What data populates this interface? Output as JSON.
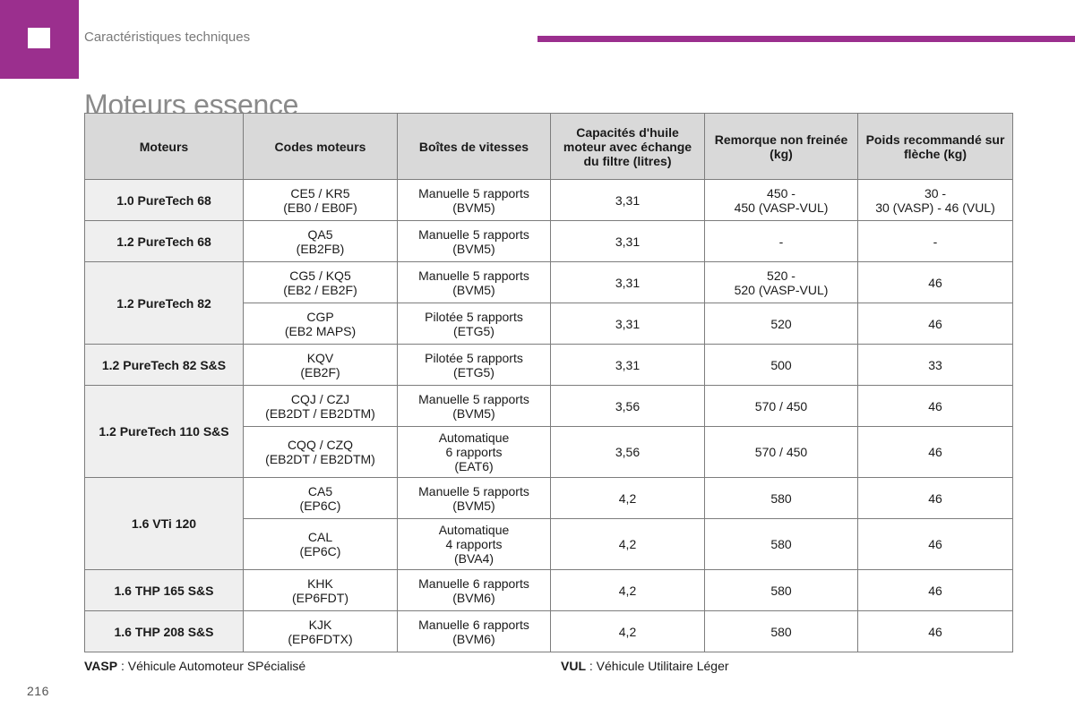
{
  "header": {
    "section_label": "Caractéristiques techniques",
    "title": "Moteurs essence"
  },
  "table": {
    "columns": [
      "Moteurs",
      "Codes moteurs",
      "Boîtes de vitesses",
      "Capacités d'huile moteur avec échange du filtre (litres)",
      "Remorque non freinée (kg)",
      "Poids recommandé sur flèche (kg)"
    ],
    "groups": [
      {
        "engine": "1.0 PureTech 68",
        "rows": [
          {
            "code": [
              "CE5 / KR5",
              "(EB0 / EB0F)"
            ],
            "gearbox": [
              "Manuelle 5 rapports",
              "(BVM5)"
            ],
            "oil": "3,31",
            "trailer": [
              "450 -",
              "450 (VASP-VUL)"
            ],
            "nose": [
              "30 -",
              "30 (VASP) - 46 (VUL)"
            ]
          }
        ]
      },
      {
        "engine": "1.2 PureTech 68",
        "rows": [
          {
            "code": [
              "QA5",
              "(EB2FB)"
            ],
            "gearbox": [
              "Manuelle 5 rapports",
              "(BVM5)"
            ],
            "oil": "3,31",
            "trailer": [
              "-"
            ],
            "nose": [
              "-"
            ]
          }
        ]
      },
      {
        "engine": "1.2 PureTech 82",
        "rows": [
          {
            "code": [
              "CG5 / KQ5",
              "(EB2 / EB2F)"
            ],
            "gearbox": [
              "Manuelle 5 rapports",
              "(BVM5)"
            ],
            "oil": "3,31",
            "trailer": [
              "520 -",
              "520 (VASP-VUL)"
            ],
            "nose": [
              "46"
            ]
          },
          {
            "code": [
              "CGP",
              "(EB2 MAPS)"
            ],
            "gearbox": [
              "Pilotée 5 rapports",
              "(ETG5)"
            ],
            "oil": "3,31",
            "trailer": [
              "520"
            ],
            "nose": [
              "46"
            ]
          }
        ]
      },
      {
        "engine": "1.2 PureTech 82 S&S",
        "rows": [
          {
            "code": [
              "KQV",
              "(EB2F)"
            ],
            "gearbox": [
              "Pilotée 5 rapports",
              "(ETG5)"
            ],
            "oil": "3,31",
            "trailer": [
              "500"
            ],
            "nose": [
              "33"
            ]
          }
        ]
      },
      {
        "engine": "1.2 PureTech 110 S&S",
        "rows": [
          {
            "code": [
              "CQJ / CZJ",
              "(EB2DT / EB2DTM)"
            ],
            "gearbox": [
              "Manuelle 5 rapports",
              "(BVM5)"
            ],
            "oil": "3,56",
            "trailer": [
              "570 / 450"
            ],
            "nose": [
              "46"
            ]
          },
          {
            "code": [
              "CQQ / CZQ",
              "(EB2DT / EB2DTM)"
            ],
            "gearbox": [
              "Automatique",
              "6 rapports",
              "(EAT6)"
            ],
            "oil": "3,56",
            "trailer": [
              "570 / 450"
            ],
            "nose": [
              "46"
            ]
          }
        ]
      },
      {
        "engine": "1.6 VTi 120",
        "rows": [
          {
            "code": [
              "CA5",
              "(EP6C)"
            ],
            "gearbox": [
              "Manuelle 5 rapports",
              "(BVM5)"
            ],
            "oil": "4,2",
            "trailer": [
              "580"
            ],
            "nose": [
              "46"
            ]
          },
          {
            "code": [
              "CAL",
              "(EP6C)"
            ],
            "gearbox": [
              "Automatique",
              "4 rapports",
              "(BVA4)"
            ],
            "oil": "4,2",
            "trailer": [
              "580"
            ],
            "nose": [
              "46"
            ]
          }
        ]
      },
      {
        "engine": "1.6 THP 165 S&S",
        "rows": [
          {
            "code": [
              "KHK",
              "(EP6FDT)"
            ],
            "gearbox": [
              "Manuelle 6 rapports",
              "(BVM6)"
            ],
            "oil": "4,2",
            "trailer": [
              "580"
            ],
            "nose": [
              "46"
            ]
          }
        ]
      },
      {
        "engine": "1.6 THP 208 S&S",
        "rows": [
          {
            "code": [
              "KJK",
              "(EP6FDTX)"
            ],
            "gearbox": [
              "Manuelle 6 rapports",
              "(BVM6)"
            ],
            "oil": "4,2",
            "trailer": [
              "580"
            ],
            "nose": [
              "46"
            ]
          }
        ]
      }
    ]
  },
  "footnotes": {
    "vasp_abbr": "VASP",
    "vasp_text": " : Véhicule Automoteur SPécialisé",
    "vul_abbr": "VUL",
    "vul_text": " : Véhicule Utilitaire Léger"
  },
  "page_number": "216",
  "colors": {
    "accent": "#9b2f8e",
    "header_fill": "#d9d9d9",
    "engine_fill": "#efefef"
  }
}
